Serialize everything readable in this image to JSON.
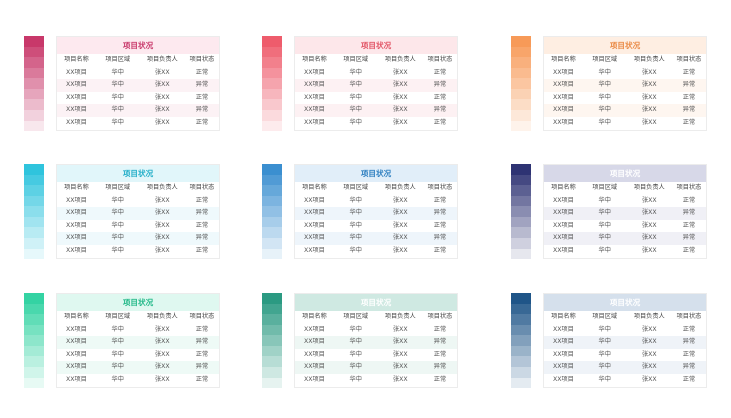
{
  "columns": [
    "项目名称",
    "项目区域",
    "项目负责人",
    "项目状态"
  ],
  "cards": [
    {
      "title": "项目状况",
      "colors": {
        "dark": "#c8386a",
        "title_bg": "#fde9ef",
        "title_fg": "#c8386a",
        "stripe": "#fcf2f5"
      },
      "rows": [
        [
          "XX项目",
          "华中",
          "张XX",
          "正常"
        ],
        [
          "XX项目",
          "华中",
          "张XX",
          "异常"
        ],
        [
          "XX项目",
          "华中",
          "张XX",
          "正常"
        ],
        [
          "XX项目",
          "华中",
          "张XX",
          "异常"
        ],
        [
          "XX项目",
          "华中",
          "张XX",
          "正常"
        ]
      ]
    },
    {
      "title": "项目状况",
      "colors": {
        "dark": "#ee5c6c",
        "title_bg": "#fde7ea",
        "title_fg": "#e25465",
        "stripe": "#fdf1f3"
      },
      "rows": [
        [
          "XX项目",
          "华中",
          "张XX",
          "正常"
        ],
        [
          "XX项目",
          "华中",
          "张XX",
          "异常"
        ],
        [
          "XX项目",
          "华中",
          "张XX",
          "正常"
        ],
        [
          "XX项目",
          "华中",
          "张XX",
          "异常"
        ],
        [
          "XX项目",
          "华中",
          "张XX",
          "正常"
        ]
      ]
    },
    {
      "title": "项目状况",
      "colors": {
        "dark": "#f79a58",
        "title_bg": "#feeee2",
        "title_fg": "#ea8a45",
        "stripe": "#fef6f0"
      },
      "rows": [
        [
          "XX项目",
          "华中",
          "张XX",
          "正常"
        ],
        [
          "XX项目",
          "华中",
          "张XX",
          "异常"
        ],
        [
          "XX项目",
          "华中",
          "张XX",
          "正常"
        ],
        [
          "XX项目",
          "华中",
          "张XX",
          "异常"
        ],
        [
          "XX项目",
          "华中",
          "张XX",
          "正常"
        ]
      ]
    },
    {
      "title": "项目状况",
      "colors": {
        "dark": "#2fc4dd",
        "title_bg": "#e1f6fa",
        "title_fg": "#22aec8",
        "stripe": "#eff9fc"
      },
      "rows": [
        [
          "XX项目",
          "华中",
          "张XX",
          "正常"
        ],
        [
          "XX项目",
          "华中",
          "张XX",
          "异常"
        ],
        [
          "XX项目",
          "华中",
          "张XX",
          "正常"
        ],
        [
          "XX项目",
          "华中",
          "张XX",
          "异常"
        ],
        [
          "XX项目",
          "华中",
          "张XX",
          "正常"
        ]
      ]
    },
    {
      "title": "项目状况",
      "colors": {
        "dark": "#3b8fd0",
        "title_bg": "#e1eef9",
        "title_fg": "#2e7fc0",
        "stripe": "#eef5fb"
      },
      "rows": [
        [
          "XX项目",
          "华中",
          "张XX",
          "正常"
        ],
        [
          "XX项目",
          "华中",
          "张XX",
          "异常"
        ],
        [
          "XX项目",
          "华中",
          "张XX",
          "正常"
        ],
        [
          "XX项目",
          "华中",
          "张XX",
          "异常"
        ],
        [
          "XX项目",
          "华中",
          "张XX",
          "正常"
        ]
      ]
    },
    {
      "title": "项目状况",
      "colors": {
        "dark": "#2e3373",
        "title_bg": "#d7d8e8",
        "title_fg": "#ffffff",
        "stripe": "#f0f0f6"
      },
      "rows": [
        [
          "XX项目",
          "华中",
          "张XX",
          "正常"
        ],
        [
          "XX项目",
          "华中",
          "张XX",
          "异常"
        ],
        [
          "XX项目",
          "华中",
          "张XX",
          "正常"
        ],
        [
          "XX项目",
          "华中",
          "张XX",
          "异常"
        ],
        [
          "XX项目",
          "华中",
          "张XX",
          "正常"
        ]
      ]
    },
    {
      "title": "项目状况",
      "colors": {
        "dark": "#34d3a3",
        "title_bg": "#dff8f0",
        "title_fg": "#22b888",
        "stripe": "#eefaf6"
      },
      "rows": [
        [
          "XX项目",
          "华中",
          "张XX",
          "正常"
        ],
        [
          "XX项目",
          "华中",
          "张XX",
          "异常"
        ],
        [
          "XX项目",
          "华中",
          "张XX",
          "正常"
        ],
        [
          "XX项目",
          "华中",
          "张XX",
          "异常"
        ],
        [
          "XX项目",
          "华中",
          "张XX",
          "正常"
        ]
      ]
    },
    {
      "title": "项目状况",
      "colors": {
        "dark": "#2b9a82",
        "title_bg": "#cfe9e2",
        "title_fg": "#ffffff",
        "stripe": "#eef7f4"
      },
      "rows": [
        [
          "XX项目",
          "华中",
          "张XX",
          "正常"
        ],
        [
          "XX项目",
          "华中",
          "张XX",
          "异常"
        ],
        [
          "XX项目",
          "华中",
          "张XX",
          "正常"
        ],
        [
          "XX项目",
          "华中",
          "张XX",
          "异常"
        ],
        [
          "XX项目",
          "华中",
          "张XX",
          "正常"
        ]
      ]
    },
    {
      "title": "项目状况",
      "colors": {
        "dark": "#1f5588",
        "title_bg": "#d5e0ec",
        "title_fg": "#ffffff",
        "stripe": "#eff3f8"
      },
      "rows": [
        [
          "XX项目",
          "华中",
          "张XX",
          "正常"
        ],
        [
          "XX项目",
          "华中",
          "张XX",
          "异常"
        ],
        [
          "XX项目",
          "华中",
          "张XX",
          "正常"
        ],
        [
          "XX项目",
          "华中",
          "张XX",
          "异常"
        ],
        [
          "XX项目",
          "华中",
          "张XX",
          "正常"
        ]
      ]
    }
  ]
}
